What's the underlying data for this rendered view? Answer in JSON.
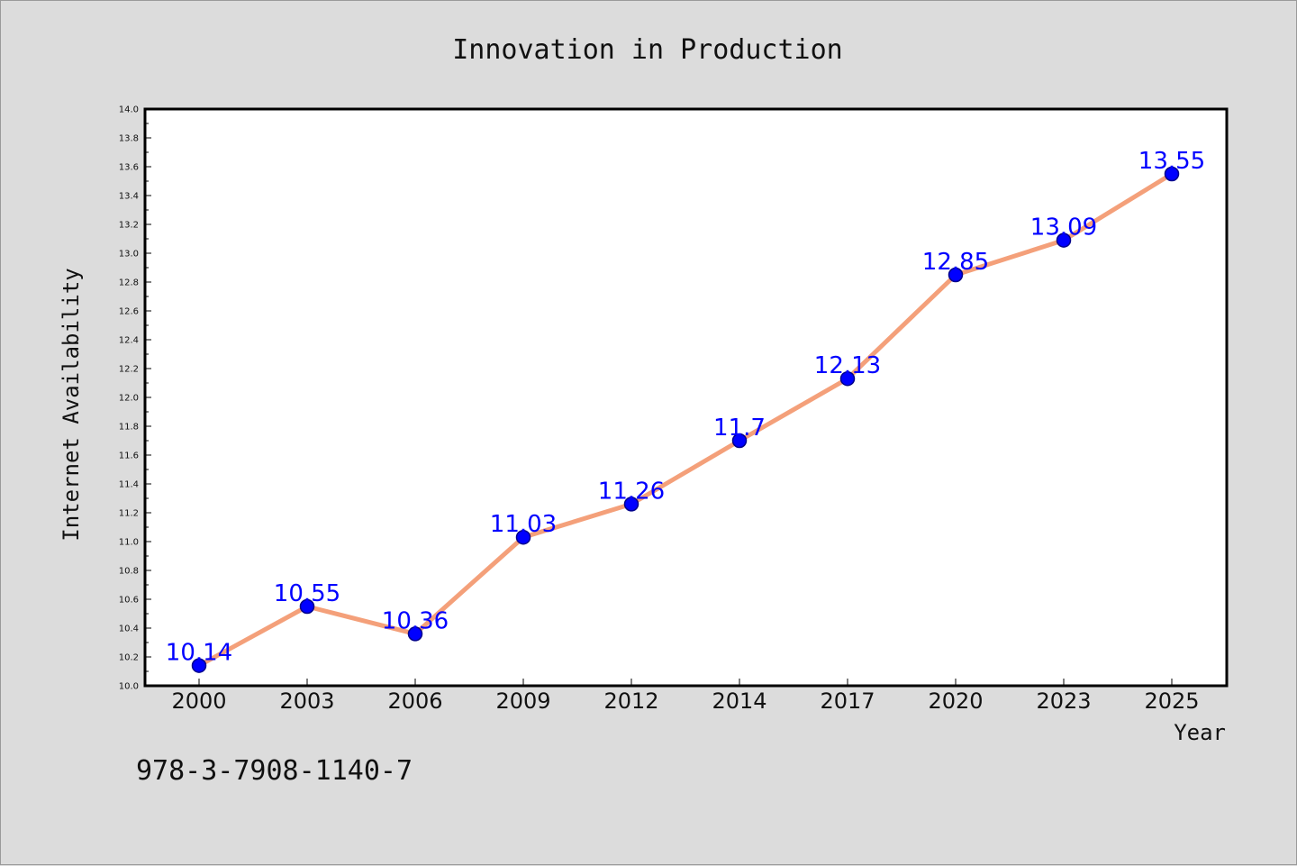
{
  "chart_data": {
    "type": "line",
    "title": "Innovation in Production",
    "xlabel": "Year",
    "ylabel": "Internet Availability",
    "categories": [
      "2000",
      "2003",
      "2006",
      "2009",
      "2012",
      "2014",
      "2017",
      "2020",
      "2023",
      "2025"
    ],
    "series": [
      {
        "values": [
          10.14,
          10.55,
          10.36,
          11.03,
          11.26,
          11.7,
          12.13,
          12.85,
          13.09,
          13.55
        ],
        "labels": [
          "10.14",
          "10.55",
          "10.36",
          "11.03",
          "11.26",
          "11.7",
          "12.13",
          "12.85",
          "13.09",
          "13.55"
        ]
      }
    ],
    "ylim": [
      10.0,
      14.0
    ],
    "yticks": [
      "10.0",
      "10.2",
      "10.4",
      "10.6",
      "10.8",
      "11.0",
      "11.2",
      "11.4",
      "11.6",
      "11.8",
      "12.0",
      "12.2",
      "12.4",
      "12.6",
      "12.8",
      "13.0",
      "13.2",
      "13.4",
      "13.6",
      "13.8",
      "14.0"
    ],
    "grid": false,
    "legend": "none",
    "colors": {
      "line": "#f4a07a",
      "marker": "#0000ff",
      "marker_edge": "#00008b",
      "data_label": "#0000ff",
      "plot_background": "#ffffff",
      "figure_background": "#dcdcdc"
    }
  },
  "footer": {
    "isbn": "978-3-7908-1140-7"
  }
}
